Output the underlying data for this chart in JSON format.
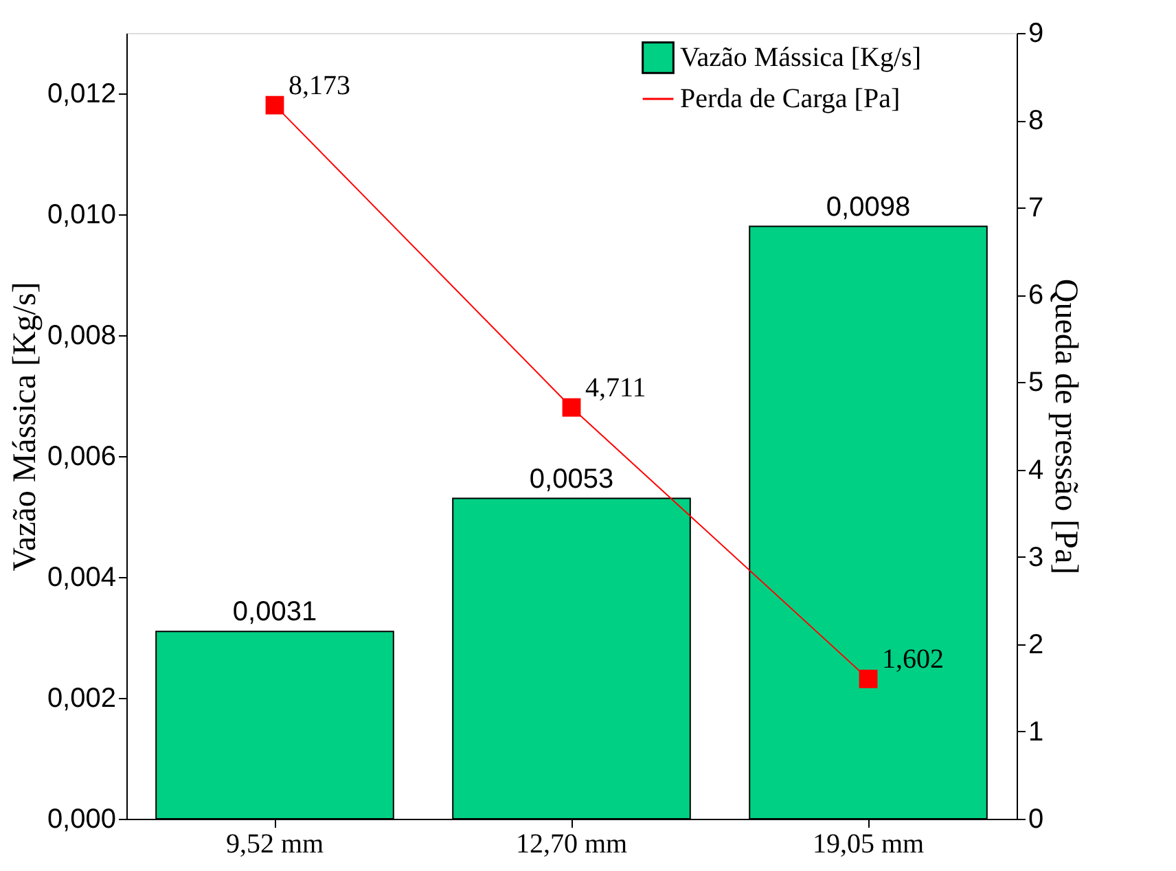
{
  "chart_data": {
    "type": "bar",
    "categories": [
      "9,52 mm",
      "12,70 mm",
      "19,05 mm"
    ],
    "ylabel": "Vazão Mássica [Kg/s]",
    "y2label": "Queda de pressão [Pa]",
    "series": [
      {
        "name": "Vazão Mássica [Kg/s]",
        "color": "#00d084",
        "values": [
          0.0031,
          0.0053,
          0.0098
        ],
        "value_labels": [
          "0,0031",
          "0,0053",
          "0,0098"
        ]
      },
      {
        "name": "Perda de Carga [Pa]",
        "type": "line",
        "axis": "y2",
        "color": "#ff0000",
        "marker": "square",
        "values": [
          8.173,
          4.711,
          1.602
        ],
        "value_labels": [
          "8,173",
          "4,711",
          "1,602"
        ]
      }
    ],
    "ylim": [
      0,
      0.013
    ],
    "yticks": [
      {
        "value": 0,
        "label": "0,000"
      },
      {
        "value": 0.002,
        "label": "0,002"
      },
      {
        "value": 0.004,
        "label": "0,004"
      },
      {
        "value": 0.006,
        "label": "0,006"
      },
      {
        "value": 0.008,
        "label": "0,008"
      },
      {
        "value": 0.01,
        "label": "0,010"
      },
      {
        "value": 0.012,
        "label": "0,012"
      }
    ],
    "y2lim": [
      0,
      9
    ],
    "y2ticks": [
      0,
      1,
      2,
      3,
      4,
      5,
      6,
      7,
      8,
      9
    ],
    "grid": false,
    "legend": "top right"
  }
}
